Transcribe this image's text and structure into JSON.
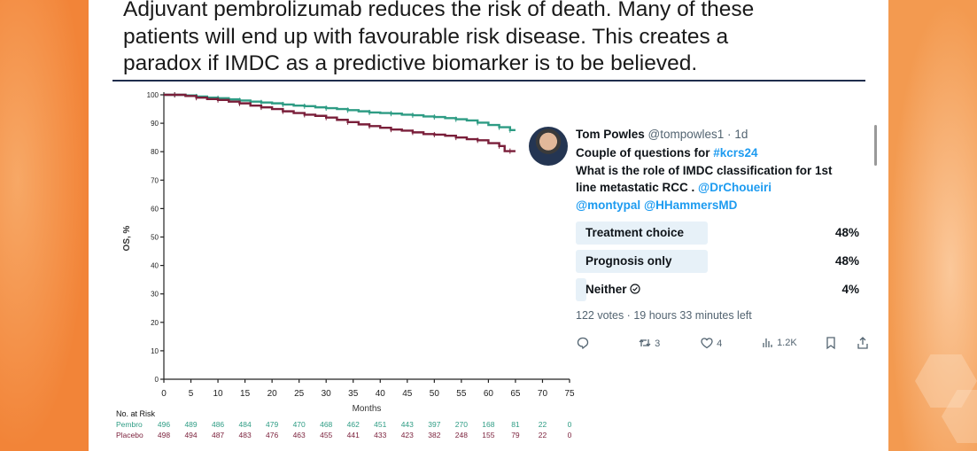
{
  "headline": {
    "line1": "Adjuvant pembrolizumab reduces the risk of death. Many of these",
    "line2": "patients will end up with favourable risk disease. This creates a",
    "line3": "paradox if IMDC as a predictive biomarker is to be believed."
  },
  "chart_data": {
    "type": "line",
    "title": "",
    "xlabel": "Months",
    "ylabel": "OS, %",
    "xlim": [
      0,
      75
    ],
    "ylim": [
      0,
      100
    ],
    "x_ticks": [
      0,
      5,
      10,
      15,
      20,
      25,
      30,
      35,
      40,
      45,
      50,
      55,
      60,
      65,
      70,
      75
    ],
    "y_ticks": [
      0,
      10,
      20,
      30,
      40,
      50,
      60,
      70,
      80,
      90,
      100
    ],
    "series": [
      {
        "name": "Pembro",
        "color": "#2e9c84",
        "x": [
          0,
          2,
          4,
          6,
          8,
          10,
          12,
          14,
          16,
          18,
          20,
          22,
          24,
          26,
          28,
          30,
          32,
          34,
          36,
          38,
          40,
          42,
          44,
          46,
          48,
          50,
          52,
          54,
          56,
          58,
          60,
          62,
          63,
          64,
          65
        ],
        "y": [
          100,
          100,
          99.8,
          99.4,
          99,
          98.8,
          98.4,
          98,
          97.6,
          97.3,
          97,
          96.6,
          96.2,
          96,
          95.6,
          95.3,
          95,
          94.6,
          94.2,
          93.8,
          93.6,
          93.4,
          93,
          92.8,
          92.4,
          92.2,
          91.8,
          91.4,
          91,
          90.2,
          89.4,
          88.6,
          88.6,
          87.6,
          87.6
        ]
      },
      {
        "name": "Placebo",
        "color": "#7a1f3a",
        "x": [
          0,
          2,
          4,
          6,
          8,
          10,
          12,
          14,
          16,
          18,
          20,
          22,
          24,
          26,
          28,
          30,
          32,
          34,
          36,
          38,
          40,
          42,
          44,
          46,
          48,
          50,
          52,
          54,
          56,
          58,
          60,
          62,
          63,
          64,
          65
        ],
        "y": [
          100,
          100,
          99.6,
          99,
          98.5,
          98.2,
          97.6,
          97,
          96.2,
          95.6,
          95,
          94.2,
          93.6,
          93,
          92.6,
          92,
          91.2,
          90.4,
          89.6,
          89,
          88.4,
          87.8,
          87.4,
          86.8,
          86.2,
          86,
          85.6,
          85,
          84.4,
          84,
          83,
          82,
          80.2,
          80.2,
          80.2
        ]
      }
    ],
    "risk_table": {
      "title": "No. at Risk",
      "rows": [
        {
          "label": "Pembro",
          "color": "#2e9c84",
          "values": [
            "496",
            "489",
            "486",
            "484",
            "479",
            "470",
            "468",
            "462",
            "451",
            "443",
            "397",
            "270",
            "168",
            "81",
            "22",
            "0"
          ]
        },
        {
          "label": "Placebo",
          "color": "#7a1f3a",
          "values": [
            "498",
            "494",
            "487",
            "483",
            "476",
            "463",
            "455",
            "441",
            "433",
            "423",
            "382",
            "248",
            "155",
            "79",
            "22",
            "0"
          ]
        }
      ]
    }
  },
  "tweet": {
    "author_name": "Tom Powles",
    "handle": "@tompowles1",
    "dot": "·",
    "time": "1d",
    "text_line1_prefix": "Couple of questions for ",
    "hashtag": "#kcrs24",
    "text_line2": "What is the role of  IMDC classification for 1st",
    "text_line3": "line metastatic RCC . ",
    "mention1": "@DrChoueiri",
    "mention2": "@montypal",
    "mention3": "@HHammersMD",
    "poll": [
      {
        "label": "Treatment choice",
        "percent": "48%",
        "share": 0.48
      },
      {
        "label": "Prognosis only",
        "percent": "48%",
        "share": 0.48
      },
      {
        "label": "Neither",
        "percent": "4%",
        "share": 0.04
      }
    ],
    "votes": "122 votes · 19 hours 33 minutes left",
    "retweets": "3",
    "likes": "4",
    "views": "1.2K"
  }
}
